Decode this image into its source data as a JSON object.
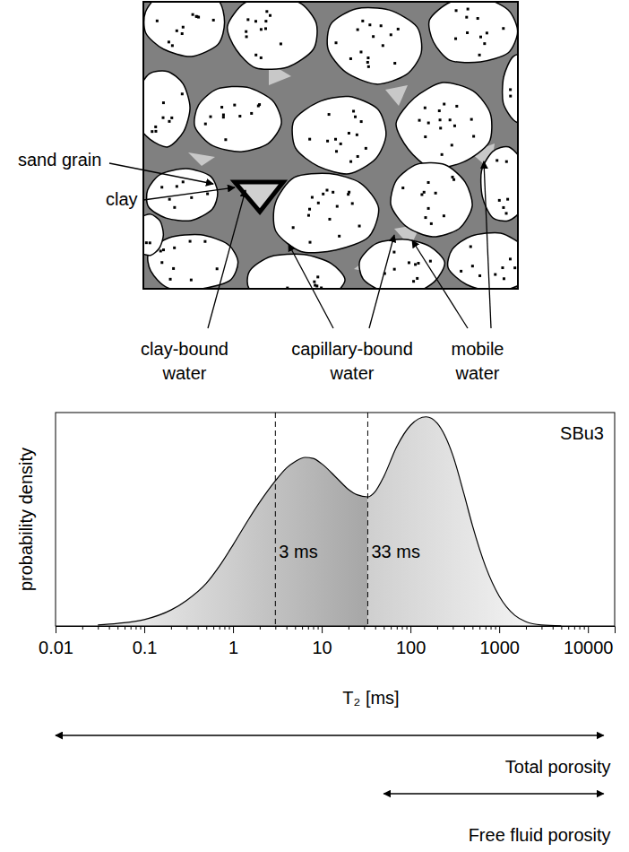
{
  "schematic": {
    "labels": [
      "sand grain",
      "clay",
      "clay-bound water",
      "capillary-bound water",
      "mobile water"
    ]
  },
  "chart_data": {
    "type": "area",
    "sample": "SBu3",
    "xlabel": "T₂ [ms]",
    "ylabel": "probability density",
    "x": [
      0.03,
      0.05,
      0.1,
      0.2,
      0.3,
      0.5,
      0.7,
      1,
      1.5,
      2,
      3,
      4,
      5,
      6.5,
      8,
      10,
      15,
      20,
      25,
      33,
      40,
      50,
      70,
      100,
      150,
      200,
      300,
      400,
      500,
      700,
      1000,
      1500,
      2000,
      3000,
      5000
    ],
    "values": [
      0.005,
      0.012,
      0.03,
      0.075,
      0.12,
      0.2,
      0.28,
      0.38,
      0.5,
      0.58,
      0.68,
      0.74,
      0.77,
      0.79,
      0.785,
      0.76,
      0.69,
      0.64,
      0.615,
      0.605,
      0.63,
      0.7,
      0.84,
      0.94,
      0.98,
      0.95,
      0.8,
      0.62,
      0.47,
      0.28,
      0.14,
      0.05,
      0.02,
      0.005,
      0.001
    ],
    "xlim": [
      0.01,
      20000
    ],
    "xticks": [
      0.01,
      0.1,
      1,
      10,
      100,
      1000,
      10000
    ],
    "xminorticks": [
      0.02,
      0.03,
      0.04,
      0.05,
      0.06,
      0.07,
      0.08,
      0.09,
      0.2,
      0.3,
      0.4,
      0.5,
      0.6,
      0.7,
      0.8,
      0.9,
      2,
      3,
      4,
      5,
      6,
      7,
      8,
      9,
      20,
      30,
      40,
      50,
      60,
      70,
      80,
      90,
      200,
      300,
      400,
      500,
      600,
      700,
      800,
      900,
      2000,
      3000,
      4000,
      5000,
      6000,
      7000,
      8000,
      9000
    ],
    "ylim": [
      0,
      1
    ],
    "log": "x",
    "tick_labels": "x",
    "annotations": [
      {
        "x": 3,
        "label": "3 ms"
      },
      {
        "x": 33,
        "label": "33 ms"
      }
    ],
    "ranges": [
      {
        "label": "Total porosity",
        "from": 0.01,
        "to": 15000
      },
      {
        "label": "Free fluid porosity",
        "from": 50,
        "to": 15000
      }
    ]
  }
}
